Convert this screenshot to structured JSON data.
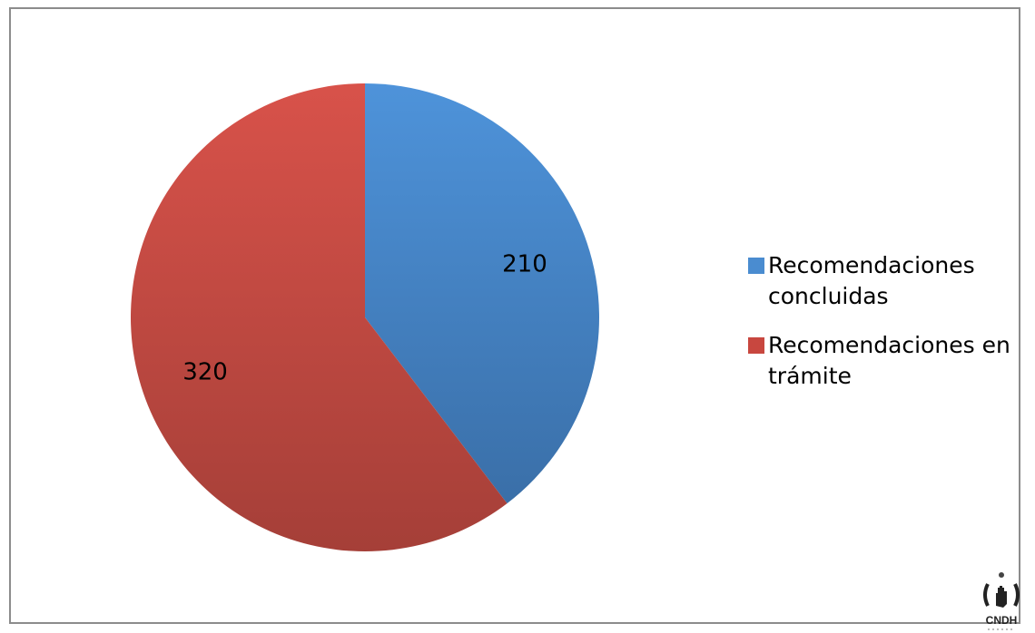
{
  "chart_data": {
    "type": "pie",
    "title": "",
    "slices": [
      {
        "label": "Recomendaciones concluidas",
        "value": 210,
        "color": "#4A8CD0"
      },
      {
        "label": "Recomendaciones en trámite",
        "value": 320,
        "color": "#C8473F"
      }
    ],
    "start_angle_deg": 0,
    "direction": "clockwise",
    "legend_position": "right"
  },
  "data_labels": [
    "210",
    "320"
  ],
  "legend": {
    "items": [
      {
        "label": "Recomendaciones concluidas",
        "color": "#4A8CD0"
      },
      {
        "label": "Recomendaciones en trámite",
        "color": "#C8473F"
      }
    ]
  },
  "logo": {
    "text": "CNDH",
    "icon": "cndh-hand-logo-icon"
  }
}
